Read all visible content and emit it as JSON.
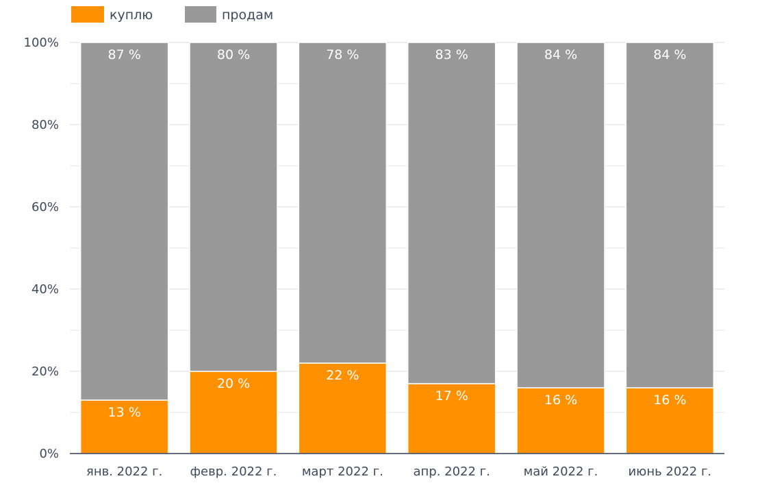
{
  "chart_data": {
    "type": "bar",
    "stacked": true,
    "normalized": true,
    "categories": [
      "янв. 2022 г.",
      "февр. 2022 г.",
      "март 2022 г.",
      "апр. 2022 г.",
      "май 2022 г.",
      "июнь 2022 г."
    ],
    "series": [
      {
        "name": "куплю",
        "color": "#ff9000",
        "values": [
          13,
          20,
          22,
          17,
          16,
          16
        ],
        "labels": [
          "13 %",
          "20 %",
          "22 %",
          "17 %",
          "16 %",
          "16 %"
        ]
      },
      {
        "name": "продам",
        "color": "#999999",
        "values": [
          87,
          80,
          78,
          83,
          84,
          84
        ],
        "labels": [
          "87 %",
          "80 %",
          "78 %",
          "83 %",
          "84 %",
          "84 %"
        ]
      }
    ],
    "y_ticks": [
      "0%",
      "20%",
      "40%",
      "60%",
      "80%",
      "100%"
    ],
    "ylim": [
      0,
      100
    ],
    "grid": true,
    "legend_position": "top-left"
  }
}
